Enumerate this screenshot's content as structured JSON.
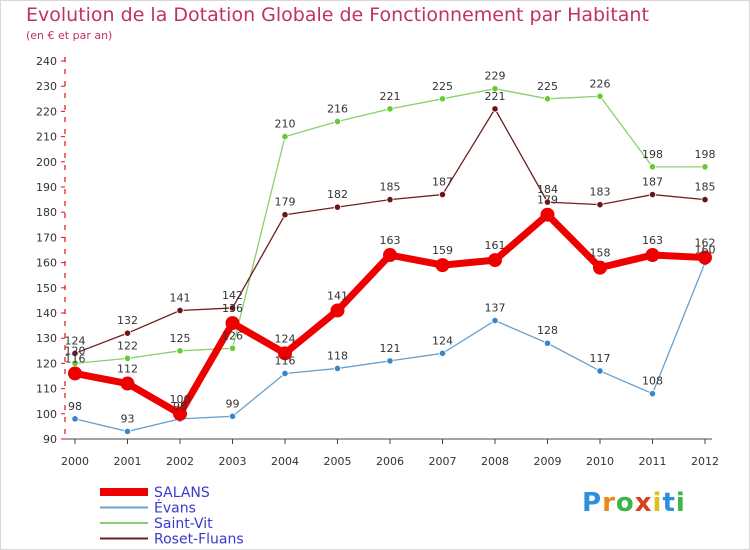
{
  "header": {
    "title": "Evolution de la Dotation Globale de Fonctionnement par Habitant",
    "subtitle": "(en € et par an)"
  },
  "logo": {
    "text": "Proxiti",
    "letter_colors": [
      "#2f8fd8",
      "#e88a1a",
      "#3bb54a",
      "#d8401a",
      "#e0c020",
      "#2f8fd8",
      "#3bb54a"
    ]
  },
  "chart_data": {
    "type": "line",
    "title": "Evolution de la Dotation Globale de Fonctionnement par Habitant",
    "subtitle": "(en € et par an)",
    "x": [
      "2000",
      "2001",
      "2002",
      "2003",
      "2004",
      "2005",
      "2006",
      "2007",
      "2008",
      "2009",
      "2010",
      "2011",
      "2012"
    ],
    "ylim": [
      90,
      240
    ],
    "yticks": [
      90,
      100,
      110,
      120,
      130,
      140,
      150,
      160,
      170,
      180,
      190,
      200,
      210,
      220,
      230,
      240
    ],
    "grid": false,
    "legend_position": "bottom-left",
    "series": [
      {
        "name": "SALANS",
        "color": "#ee0000",
        "values": [
          116,
          112,
          100,
          136,
          124,
          141,
          163,
          159,
          161,
          179,
          158,
          163,
          162
        ]
      },
      {
        "name": "Évans",
        "color": "#6aa0cc",
        "values": [
          98,
          93,
          98,
          99,
          116,
          118,
          121,
          124,
          137,
          128,
          117,
          108,
          160
        ]
      },
      {
        "name": "Saint-Vit",
        "color": "#88d070",
        "values": [
          120,
          122,
          125,
          126,
          210,
          216,
          221,
          225,
          229,
          225,
          226,
          198,
          198
        ]
      },
      {
        "name": "Roset-Fluans",
        "color": "#6e2020",
        "values": [
          124,
          132,
          141,
          142,
          179,
          182,
          185,
          187,
          221,
          184,
          183,
          187,
          185
        ]
      }
    ]
  }
}
